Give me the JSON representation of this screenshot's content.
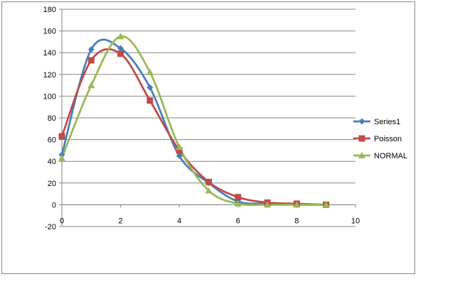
{
  "chart_data": {
    "type": "scatter",
    "smooth": true,
    "grid": true,
    "legend_position": "right",
    "title": "",
    "xlabel": "",
    "ylabel": "",
    "xlim": [
      0,
      10
    ],
    "ylim": [
      -20,
      180
    ],
    "x_ticks": [
      0,
      2,
      4,
      6,
      8,
      10
    ],
    "y_ticks": [
      -20,
      0,
      20,
      40,
      60,
      80,
      100,
      120,
      140,
      160,
      180
    ],
    "series": [
      {
        "name": "Series1",
        "color": "#4a7ebb",
        "marker": "diamond",
        "x": [
          0,
          1,
          2,
          3,
          4,
          5,
          6,
          7,
          8,
          9
        ],
        "y": [
          46,
          143,
          144,
          108,
          45,
          20,
          3,
          1,
          0,
          0
        ]
      },
      {
        "name": "Poisson",
        "color": "#be4b48",
        "marker": "square",
        "x": [
          0,
          1,
          2,
          3,
          4,
          5,
          6,
          7,
          8,
          9
        ],
        "y": [
          63,
          133,
          139,
          96,
          50,
          21,
          7,
          2,
          1,
          0
        ]
      },
      {
        "name": "NORMAL",
        "color": "#98b954",
        "marker": "triangle",
        "x": [
          0,
          1,
          2,
          3,
          4,
          5,
          6,
          7,
          8,
          9
        ],
        "y": [
          43,
          110,
          155,
          122,
          53,
          13,
          1,
          0,
          0,
          0
        ]
      }
    ]
  }
}
